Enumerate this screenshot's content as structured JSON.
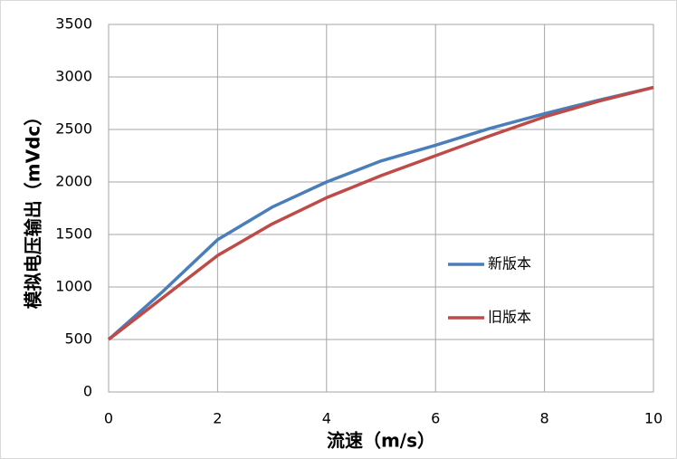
{
  "chart_data": {
    "type": "line",
    "x_label": "流速（m/s）",
    "y_label": "模拟电压输出（mVdc）",
    "x": [
      0,
      1,
      2,
      3,
      4,
      5,
      6,
      7,
      8,
      9,
      10
    ],
    "series": [
      {
        "name": "新版本",
        "color": "#4a7ebb",
        "values": [
          500,
          960,
          1450,
          1760,
          2000,
          2200,
          2350,
          2510,
          2650,
          2780,
          2900
        ]
      },
      {
        "name": "旧版本",
        "color": "#be4b48",
        "values": [
          500,
          900,
          1300,
          1600,
          1850,
          2060,
          2250,
          2440,
          2620,
          2770,
          2900
        ]
      }
    ],
    "xlim": [
      0,
      10
    ],
    "xticks": [
      0,
      2,
      4,
      6,
      8,
      10
    ],
    "ylim": [
      0,
      3500
    ],
    "yticks": [
      0,
      500,
      1000,
      1500,
      2000,
      2500,
      3000,
      3500
    ],
    "grid": true,
    "legend": "right"
  }
}
